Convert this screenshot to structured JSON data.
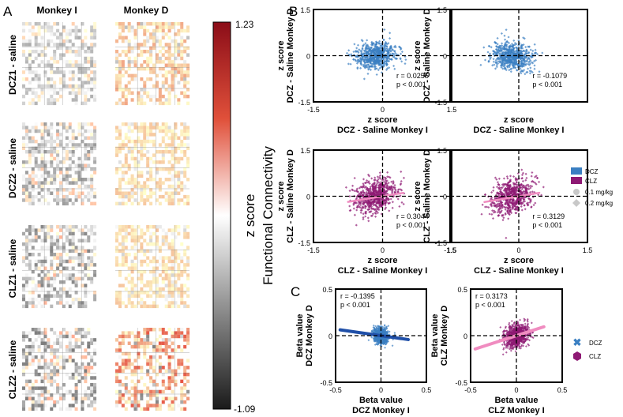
{
  "panel_labels": {
    "a": "A",
    "b": "B",
    "c": "C"
  },
  "panel_a": {
    "col_titles": [
      "Monkey I",
      "Monkey D"
    ],
    "row_labels": [
      "DCZ1 - saline",
      "DCZ2 - saline",
      "CLZ1 - saline",
      "CLZ2 - saline"
    ],
    "colorbar": {
      "max_label": "1.23",
      "min_label": "-1.09",
      "title_line1": "z score",
      "title_line2": "Functional Connectivity",
      "max": 1.23,
      "min": -1.09
    }
  },
  "legend_b": {
    "dcz": "DCZ",
    "clz": "CLZ",
    "dose1": "0.1 mg/kg",
    "dose2": "0.2 mg/kg"
  },
  "legend_c": {
    "dcz": "DCZ",
    "clz": "CLZ"
  },
  "colors": {
    "dcz": "#3a7fc2",
    "clz": "#8e1a74",
    "dcz_line": "#1f4fa8",
    "clz_line": "#f08cc0",
    "cb_top": "#8b0d18",
    "cb_mid": "#ffffff",
    "cb_bot": "#1a1a1a"
  },
  "chart_data": [
    {
      "type": "scatter",
      "id": "b1",
      "series": "dcz",
      "title": "",
      "xlabel": "z score",
      "xlabel2": "DCZ - Saline  Monkey I",
      "ylabel": "z score",
      "ylabel2": "DCZ - Saline  Monkey D",
      "xlim": [
        -1.5,
        1.5
      ],
      "ylim": [
        -1.5,
        1.5
      ],
      "xticks": [
        "-1.5",
        "0",
        "1.5"
      ],
      "yticks": [
        "1.5",
        "0",
        "-1.5"
      ],
      "show_xticks": true,
      "r_text": "r = 0.0255",
      "p_text": "p  < 0.001",
      "r": 0.0255,
      "fit": false
    },
    {
      "type": "scatter",
      "id": "b2",
      "series": "dcz",
      "title": "",
      "xlabel": "z score",
      "xlabel2": "DCZ - Saline  Monkey I",
      "ylabel": "z score",
      "ylabel2": "DCZ - Saline  Monkey D",
      "xlim": [
        -1.5,
        1.5
      ],
      "ylim": [
        -1.5,
        1.5
      ],
      "xticks": [
        "-1.5",
        "0",
        "1.5"
      ],
      "yticks": [
        "1.5",
        "0",
        "-1.5"
      ],
      "show_xticks": false,
      "r_text": "r = -0.1079",
      "p_text": "p  < 0.001",
      "r": -0.1079,
      "fit": false
    },
    {
      "type": "scatter",
      "id": "b3",
      "series": "clz",
      "title": "",
      "xlabel": "z score",
      "xlabel2": "CLZ - Saline  Monkey I",
      "ylabel": "z score",
      "ylabel2": "CLZ - Saline  Monkey D",
      "xlim": [
        -1.5,
        1.5
      ],
      "ylim": [
        -1.5,
        1.5
      ],
      "xticks": [
        "-1.5",
        "0",
        "1.5"
      ],
      "yticks": [
        "1.5",
        "0",
        "-1.5"
      ],
      "show_xticks": true,
      "r_text": "r = 0.3044",
      "p_text": "p  < 0.001",
      "r": 0.3044,
      "fit": true
    },
    {
      "type": "scatter",
      "id": "b4",
      "series": "clz",
      "title": "",
      "xlabel": "z score",
      "xlabel2": "CLZ - Saline  Monkey I",
      "ylabel": "z score",
      "ylabel2": "CLZ - Saline  Monkey D",
      "xlim": [
        -1.5,
        1.5
      ],
      "ylim": [
        -1.5,
        1.5
      ],
      "xticks": [
        "-1.5",
        "0",
        "1.5"
      ],
      "yticks": [
        "1.5",
        "0",
        "-1.5"
      ],
      "show_xticks": true,
      "r_text": "r = 0.3129",
      "p_text": "p  < 0.001",
      "r": 0.3129,
      "fit": true
    },
    {
      "type": "scatter",
      "id": "c1",
      "series": "dcz",
      "title": "",
      "xlabel": "Beta value",
      "xlabel2": "DCZ Monkey I",
      "ylabel": "Beta value",
      "ylabel2": "DCZ Monkey D",
      "xlim": [
        -0.5,
        0.5
      ],
      "ylim": [
        -0.5,
        0.5
      ],
      "xticks": [
        "-0.5",
        "0",
        "0.5"
      ],
      "yticks": [
        "0.5",
        "0",
        "-0.5"
      ],
      "show_xticks": true,
      "r_text": "r = -0.1395",
      "p_text": "p < 0.001",
      "r": -0.1395,
      "fit": true
    },
    {
      "type": "scatter",
      "id": "c2",
      "series": "clz",
      "title": "",
      "xlabel": "Beta value",
      "xlabel2": "CLZ  Monkey I",
      "ylabel": "Beta value",
      "ylabel2": "CLZ Monkey D",
      "xlim": [
        -0.5,
        0.5
      ],
      "ylim": [
        -0.5,
        0.5
      ],
      "xticks": [
        "-0.5",
        "0",
        "0.5"
      ],
      "yticks": [
        "0.5",
        "0",
        "-0.5"
      ],
      "show_xticks": true,
      "r_text": "r = 0.3173",
      "p_text": "p < 0.001",
      "r": 0.3173,
      "fit": true
    }
  ]
}
